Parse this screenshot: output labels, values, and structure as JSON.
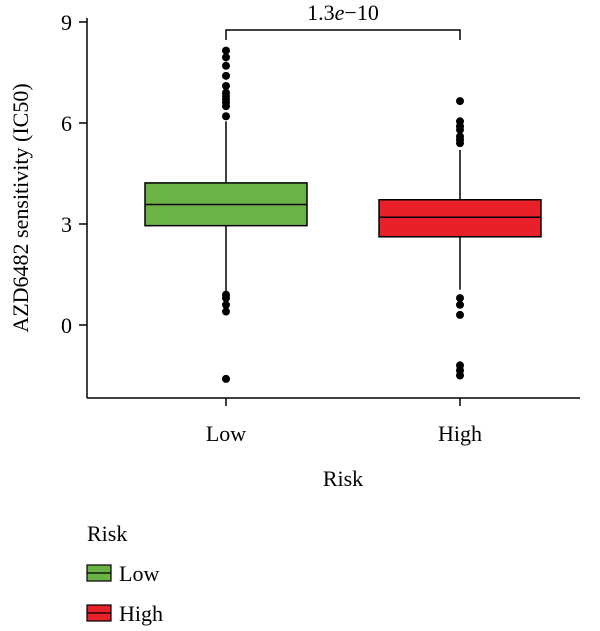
{
  "chart_data": {
    "type": "box",
    "title": "",
    "xlabel": "Risk",
    "ylabel": "AZD6482 sensitivity (IC50)",
    "ylim": [
      -2.2,
      9.2
    ],
    "yticks": [
      "0",
      "3",
      "6",
      "9"
    ],
    "yticks_values": [
      0,
      3,
      6,
      9
    ],
    "categories": [
      "Low",
      "High"
    ],
    "series": [
      {
        "category": "Low",
        "color": "#6ab344",
        "q1": 2.95,
        "median": 3.58,
        "q3": 4.22,
        "whisker_low": 1.0,
        "whisker_high": 6.05,
        "outliers": [
          8.15,
          7.95,
          7.7,
          7.4,
          7.1,
          6.9,
          6.8,
          6.7,
          6.6,
          6.5,
          6.2,
          0.9,
          0.8,
          0.6,
          0.4,
          -1.6
        ]
      },
      {
        "category": "High",
        "color": "#e8202a",
        "q1": 2.62,
        "median": 3.2,
        "q3": 3.72,
        "whisker_low": 1.05,
        "whisker_high": 5.2,
        "outliers": [
          6.65,
          6.05,
          5.9,
          5.8,
          5.6,
          5.5,
          5.4,
          0.8,
          0.6,
          0.3,
          -1.2,
          -1.35,
          -1.5
        ]
      }
    ],
    "annotation": {
      "text_prefix": "1.3",
      "text_italic": "e",
      "text_suffix": "−10",
      "between": [
        "Low",
        "High"
      ]
    },
    "legend": {
      "title": "Risk",
      "position": "bottom-left",
      "entries": [
        {
          "label": "Low",
          "color": "#6ab344"
        },
        {
          "label": "High",
          "color": "#e8202a"
        }
      ]
    },
    "grid": false
  }
}
